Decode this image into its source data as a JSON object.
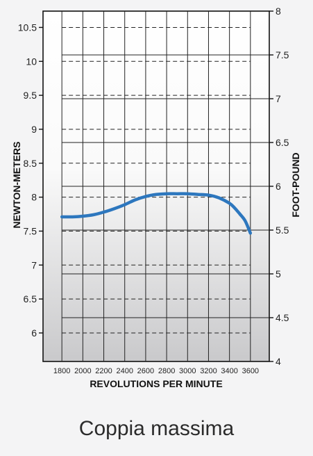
{
  "caption": "Coppia massima",
  "chart_data": {
    "type": "line",
    "xlabel": "REVOLUTIONS PER MINUTE",
    "ylabel": "NEWTON-METERS",
    "ylabel_right": "FOOT-POUND",
    "x_ticks": [
      1800,
      2000,
      2200,
      2400,
      2600,
      2800,
      3000,
      3200,
      3400,
      3600
    ],
    "xlim": [
      1620,
      3780
    ],
    "y_ticks": [
      6,
      6.5,
      7,
      7.5,
      8,
      8.5,
      9,
      9.5,
      10,
      10.5
    ],
    "ylim": [
      5.58,
      10.74
    ],
    "y2_ticks": [
      4,
      4.5,
      5,
      5.5,
      6,
      6.5,
      7,
      7.5,
      8
    ],
    "y2lim": [
      4,
      8
    ],
    "grid": true,
    "series": [
      {
        "x": [
          1800,
          1900,
          2000,
          2100,
          2200,
          2300,
          2400,
          2500,
          2600,
          2700,
          2800,
          2900,
          3000,
          3100,
          3200,
          3300,
          3400,
          3450,
          3500,
          3550,
          3600
        ],
        "y": [
          7.71,
          7.71,
          7.72,
          7.74,
          7.78,
          7.83,
          7.89,
          7.96,
          8.01,
          8.04,
          8.05,
          8.05,
          8.05,
          8.04,
          8.03,
          7.99,
          7.91,
          7.84,
          7.75,
          7.65,
          7.47
        ],
        "color": "#2d77be"
      }
    ]
  }
}
